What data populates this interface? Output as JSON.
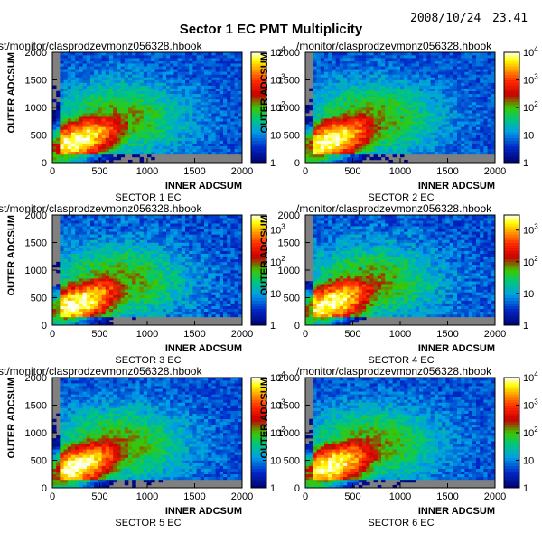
{
  "page": {
    "title": "Sector 1 EC PMT Multiplicity",
    "date": "2008/10/24",
    "time": "23.41"
  },
  "panel_header": "st/monitor/clasprodzevmonz056328.hbook",
  "panel_header_full": "/monitor/clasprodzevmonz056328.hbook",
  "colormap": [
    "#ffffff",
    "#ffff00",
    "#ffa500",
    "#ff0000",
    "#a00000",
    "#00c000",
    "#00a0ff",
    "#0000c0",
    "#000080"
  ],
  "chart_data": [
    {
      "type": "heatmap",
      "subtitle": "SECTOR 1 EC",
      "xlabel": "INNER ADCSUM",
      "ylabel": "OUTER ADCSUM",
      "xlim": [
        0,
        2000
      ],
      "ylim": [
        0,
        2000
      ],
      "xticks": [
        "0",
        "500",
        "1000",
        "1500",
        "2000"
      ],
      "yticks": [
        "0",
        "500",
        "1000",
        "1500",
        "2000"
      ],
      "zscale": "log",
      "zticks": [
        "1",
        "10",
        "10^2",
        "10^3",
        "10^4"
      ],
      "peak": {
        "x": 250,
        "y": 380,
        "count": 10000
      }
    },
    {
      "type": "heatmap",
      "subtitle": "SECTOR 2 EC",
      "xlabel": "INNER ADCSUM",
      "ylabel": "OUTER ADCSUM",
      "xlim": [
        0,
        2000
      ],
      "ylim": [
        0,
        2000
      ],
      "xticks": [
        "0",
        "500",
        "1000",
        "1500",
        "2000"
      ],
      "yticks": [
        "0",
        "500",
        "1000",
        "1500",
        "2000"
      ],
      "zscale": "log",
      "zticks": [
        "1",
        "10",
        "10^2",
        "10^3",
        "10^4"
      ],
      "peak": {
        "x": 250,
        "y": 380,
        "count": 10000
      }
    },
    {
      "type": "heatmap",
      "subtitle": "SECTOR 3 EC",
      "xlabel": "INNER ADCSUM",
      "ylabel": "OUTER ADCSUM",
      "xlim": [
        0,
        2000
      ],
      "ylim": [
        0,
        2000
      ],
      "xticks": [
        "0",
        "500",
        "1000",
        "1500",
        "2000"
      ],
      "yticks": [
        "0",
        "500",
        "1000",
        "1500",
        "2000"
      ],
      "zscale": "log",
      "zticks": [
        "1",
        "10",
        "10^2",
        "10^3"
      ],
      "peak": {
        "x": 250,
        "y": 380,
        "count": 3000
      }
    },
    {
      "type": "heatmap",
      "subtitle": "SECTOR 4 EC",
      "xlabel": "INNER ADCSUM",
      "ylabel": "OUTER ADCSUM",
      "xlim": [
        0,
        2000
      ],
      "ylim": [
        0,
        2000
      ],
      "xticks": [
        "0",
        "500",
        "1000",
        "1500",
        "2000"
      ],
      "yticks": [
        "0",
        "500",
        "1000",
        "1500",
        "2000"
      ],
      "zscale": "log",
      "zticks": [
        "1",
        "10",
        "10^2",
        "10^3"
      ],
      "peak": {
        "x": 250,
        "y": 380,
        "count": 3000
      }
    },
    {
      "type": "heatmap",
      "subtitle": "SECTOR 5 EC",
      "xlabel": "INNER ADCSUM",
      "ylabel": "OUTER ADCSUM",
      "xlim": [
        0,
        2000
      ],
      "ylim": [
        0,
        2000
      ],
      "xticks": [
        "0",
        "500",
        "1000",
        "1500",
        "2000"
      ],
      "yticks": [
        "0",
        "500",
        "1000",
        "1500",
        "2000"
      ],
      "zscale": "log",
      "zticks": [
        "1",
        "10",
        "10^2",
        "10^3",
        "10^4"
      ],
      "peak": {
        "x": 250,
        "y": 380,
        "count": 10000
      }
    },
    {
      "type": "heatmap",
      "subtitle": "SECTOR 6 EC",
      "xlabel": "INNER ADCSUM",
      "ylabel": "OUTER ADCSUM",
      "xlim": [
        0,
        2000
      ],
      "ylim": [
        0,
        2000
      ],
      "xticks": [
        "0",
        "500",
        "1000",
        "1500",
        "2000"
      ],
      "yticks": [
        "0",
        "500",
        "1000",
        "1500",
        "2000"
      ],
      "zscale": "log",
      "zticks": [
        "1",
        "10",
        "10^2",
        "10^3",
        "10^4"
      ],
      "peak": {
        "x": 250,
        "y": 380,
        "count": 10000
      }
    }
  ]
}
